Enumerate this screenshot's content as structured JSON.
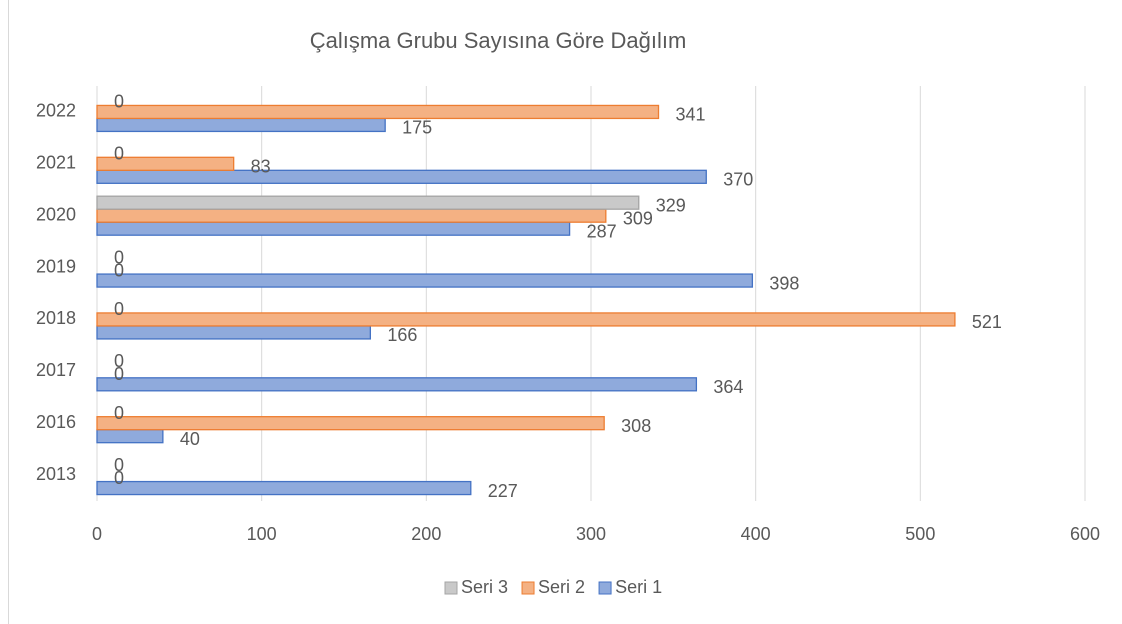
{
  "chart_data": {
    "type": "bar",
    "orientation": "horizontal",
    "title": "Çalışma Grubu Sayısına Göre Dağılım",
    "categories": [
      "2013",
      "2016",
      "2017",
      "2018",
      "2019",
      "2020",
      "2021",
      "2022"
    ],
    "series": [
      {
        "name": "Seri 1",
        "color": "#8faadc",
        "edgecolor": "#4472c4",
        "values": [
          227,
          40,
          364,
          166,
          398,
          287,
          370,
          175
        ]
      },
      {
        "name": "Seri 2",
        "color": "#f4b183",
        "edgecolor": "#ed7d31",
        "values": [
          0,
          308,
          0,
          521,
          0,
          309,
          83,
          341
        ]
      },
      {
        "name": "Seri 3",
        "color": "#c9c9c9",
        "edgecolor": "#a5a5a5",
        "values": [
          0,
          0,
          0,
          0,
          0,
          329,
          0,
          0
        ]
      }
    ],
    "xlim": [
      0,
      600
    ],
    "xticks": [
      0,
      100,
      200,
      300,
      400,
      500,
      600
    ],
    "grid": true,
    "legend": "bottom"
  }
}
